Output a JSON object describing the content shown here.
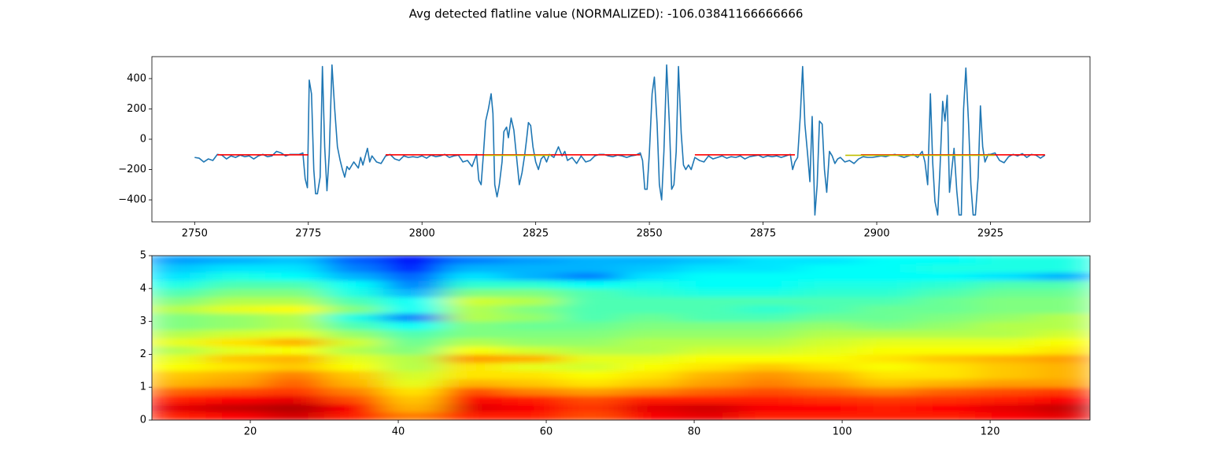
{
  "title": "Avg detected flatline value (NORMALIZED): -106.03841166666666",
  "chart_data": [
    {
      "type": "line",
      "xlim": [
        2740.6,
        2946.9
      ],
      "ylim": [
        -545,
        545
      ],
      "xticks": [
        2750,
        2775,
        2800,
        2825,
        2850,
        2875,
        2900,
        2925
      ],
      "yticks": [
        {
          "value": -400,
          "label": "−400"
        },
        {
          "value": -200,
          "label": "−200"
        },
        0,
        200,
        400
      ],
      "series": [
        {
          "color": "#1f77b4",
          "x": [
            2750,
            2751,
            2752,
            2753,
            2754,
            2755,
            2756,
            2757,
            2758,
            2759,
            2760,
            2761,
            2762,
            2763,
            2764,
            2765,
            2766,
            2767,
            2768,
            2769,
            2770,
            2771,
            2772,
            2773,
            2773.8,
            2774.3,
            2774.8,
            2775.2,
            2775.7,
            2776.2,
            2776.6,
            2777,
            2777.6,
            2778.1,
            2778.6,
            2779.1,
            2779.6,
            2780.2,
            2780.8,
            2781.4,
            2782,
            2782.5,
            2783,
            2783.5,
            2784,
            2785,
            2786,
            2786.5,
            2787,
            2788,
            2788.5,
            2789,
            2790,
            2791,
            2792,
            2793,
            2794,
            2795,
            2796,
            2797,
            2798,
            2799,
            2800,
            2801,
            2802,
            2803,
            2804,
            2805,
            2806,
            2807,
            2808,
            2809,
            2810,
            2811,
            2812,
            2812.5,
            2813,
            2813.5,
            2814,
            2814.6,
            2815.2,
            2815.6,
            2816,
            2816.5,
            2817,
            2817.6,
            2818,
            2818.6,
            2819,
            2819.6,
            2820.2,
            2820.8,
            2821.4,
            2822,
            2822.6,
            2823,
            2823.4,
            2823.9,
            2824.4,
            2825,
            2825.6,
            2826.2,
            2826.8,
            2827.4,
            2828,
            2829,
            2830,
            2830.8,
            2831.4,
            2832,
            2833,
            2834,
            2835,
            2836,
            2837,
            2838,
            2839,
            2840,
            2841,
            2842,
            2843,
            2844,
            2845,
            2846,
            2847,
            2848,
            2848.5,
            2849,
            2849.5,
            2850,
            2850.6,
            2851.1,
            2851.7,
            2852.2,
            2852.7,
            2853.2,
            2853.8,
            2854.4,
            2854.9,
            2855.4,
            2855.9,
            2856.4,
            2857,
            2857.5,
            2858,
            2858.6,
            2859.2,
            2860,
            2861,
            2862,
            2863,
            2864,
            2865,
            2866,
            2867,
            2868,
            2869,
            2870,
            2871,
            2872,
            2873,
            2874,
            2875,
            2876,
            2877,
            2878,
            2879,
            2880,
            2881,
            2881.5,
            2882,
            2882.6,
            2883.2,
            2883.7,
            2884.2,
            2884.8,
            2885.3,
            2885.8,
            2886.4,
            2886.9,
            2887.4,
            2888,
            2888.5,
            2889,
            2889.6,
            2890.2,
            2890.8,
            2891.4,
            2892,
            2893,
            2894,
            2895,
            2896,
            2897,
            2898,
            2899,
            2900,
            2901,
            2902,
            2903,
            2904,
            2905,
            2906,
            2907,
            2908,
            2909,
            2910,
            2910.6,
            2911.2,
            2911.8,
            2912.3,
            2912.8,
            2913.4,
            2913.9,
            2914.5,
            2915,
            2915.5,
            2916,
            2916.5,
            2917,
            2917.6,
            2918.1,
            2918.6,
            2919.1,
            2919.6,
            2920.2,
            2920.7,
            2921.2,
            2921.7,
            2922.3,
            2922.8,
            2923.3,
            2923.8,
            2924.5,
            2925,
            2926,
            2927,
            2928,
            2929,
            2930,
            2931,
            2932,
            2933,
            2934,
            2935,
            2936,
            2937
          ],
          "values": [
            -120,
            -125,
            -150,
            -130,
            -140,
            -100,
            -105,
            -130,
            -110,
            -120,
            -105,
            -115,
            -110,
            -130,
            -110,
            -100,
            -115,
            -110,
            -80,
            -90,
            -110,
            -100,
            -100,
            -100,
            -90,
            -260,
            -320,
            390,
            300,
            -200,
            -360,
            -360,
            -250,
            480,
            -50,
            -340,
            -100,
            490,
            200,
            -50,
            -140,
            -200,
            -250,
            -180,
            -200,
            -150,
            -190,
            -120,
            -170,
            -60,
            -150,
            -110,
            -150,
            -160,
            -110,
            -100,
            -130,
            -140,
            -110,
            -120,
            -115,
            -120,
            -110,
            -125,
            -105,
            -115,
            -110,
            -100,
            -120,
            -110,
            -105,
            -150,
            -140,
            -180,
            -100,
            -270,
            -300,
            -100,
            120,
            200,
            300,
            170,
            -300,
            -380,
            -300,
            -150,
            50,
            80,
            10,
            140,
            60,
            -120,
            -300,
            -220,
            -100,
            0,
            110,
            90,
            -50,
            -150,
            -200,
            -130,
            -110,
            -150,
            -100,
            -120,
            -50,
            -110,
            -80,
            -140,
            -120,
            -160,
            -110,
            -150,
            -140,
            -110,
            -100,
            -100,
            -110,
            -115,
            -105,
            -110,
            -120,
            -110,
            -105,
            -90,
            -140,
            -330,
            -330,
            -90,
            300,
            410,
            100,
            -300,
            -400,
            -80,
            490,
            100,
            -330,
            -300,
            -80,
            480,
            40,
            -170,
            -200,
            -170,
            -200,
            -120,
            -140,
            -150,
            -110,
            -130,
            -120,
            -110,
            -125,
            -115,
            -120,
            -110,
            -130,
            -115,
            -110,
            -105,
            -120,
            -110,
            -115,
            -110,
            -120,
            -110,
            -100,
            -200,
            -150,
            -120,
            160,
            480,
            100,
            -100,
            -280,
            150,
            -500,
            -300,
            120,
            100,
            -200,
            -350,
            -80,
            -110,
            -160,
            -130,
            -120,
            -150,
            -140,
            -160,
            -130,
            -115,
            -120,
            -120,
            -115,
            -110,
            -115,
            -105,
            -100,
            -110,
            -120,
            -110,
            -100,
            -120,
            -80,
            -150,
            -300,
            300,
            -150,
            -410,
            -500,
            -200,
            250,
            120,
            290,
            -350,
            -200,
            -60,
            -340,
            -500,
            -500,
            200,
            470,
            100,
            -300,
            -500,
            -500,
            -250,
            220,
            -50,
            -150,
            -100,
            -100,
            -90,
            -140,
            -155,
            -115,
            -100,
            -110,
            -95,
            -120,
            -100,
            -105,
            -125,
            -105
          ]
        },
        {
          "color": "#ff0000",
          "x": [
            2755,
            2775,
            null,
            2792,
            2848,
            null,
            2860,
            2882,
            null,
            2896.5,
            2937
          ],
          "values": [
            -103,
            -103,
            null,
            -103,
            -103,
            null,
            -103,
            -103,
            null,
            -103,
            -103
          ]
        },
        {
          "color": "#bfbf00",
          "x": [
            2813.7,
            2828.4,
            null,
            2893.1,
            2925.9
          ],
          "values": [
            -106,
            -106,
            null,
            -106,
            -106
          ]
        }
      ]
    },
    {
      "type": "heatmap",
      "colormap": "jet",
      "xlim": [
        6.7,
        133.5
      ],
      "ylim": [
        0,
        5
      ],
      "xticks": [
        20,
        40,
        60,
        80,
        100,
        120
      ],
      "yticks": [
        0,
        1,
        2,
        3,
        4,
        5
      ],
      "x": [
        10,
        18,
        26,
        34,
        42,
        50,
        58,
        66,
        74,
        82,
        90,
        98,
        106,
        114,
        122,
        130
      ],
      "y": [
        0.125,
        0.375,
        0.625,
        0.875,
        1.125,
        1.375,
        1.625,
        1.875,
        2.125,
        2.375,
        2.625,
        2.875,
        3.125,
        3.375,
        3.625,
        3.875,
        4.125,
        4.375,
        4.625,
        4.875
      ],
      "z": [
        [
          0.85,
          0.88,
          0.92,
          0.85,
          0.75,
          0.85,
          0.85,
          0.8,
          0.88,
          0.9,
          0.85,
          0.85,
          0.85,
          0.85,
          0.88,
          0.9
        ],
        [
          0.9,
          0.93,
          0.95,
          0.88,
          0.7,
          0.9,
          0.88,
          0.82,
          0.9,
          0.92,
          0.88,
          0.87,
          0.85,
          0.87,
          0.9,
          0.93
        ],
        [
          0.85,
          0.88,
          0.9,
          0.8,
          0.68,
          0.88,
          0.85,
          0.8,
          0.85,
          0.85,
          0.85,
          0.83,
          0.82,
          0.83,
          0.85,
          0.88
        ],
        [
          0.78,
          0.8,
          0.82,
          0.75,
          0.65,
          0.8,
          0.75,
          0.72,
          0.75,
          0.78,
          0.8,
          0.78,
          0.75,
          0.78,
          0.8,
          0.82
        ],
        [
          0.7,
          0.72,
          0.78,
          0.7,
          0.6,
          0.7,
          0.68,
          0.65,
          0.68,
          0.72,
          0.75,
          0.72,
          0.68,
          0.7,
          0.72,
          0.72
        ],
        [
          0.68,
          0.7,
          0.75,
          0.68,
          0.58,
          0.65,
          0.65,
          0.62,
          0.65,
          0.7,
          0.73,
          0.7,
          0.65,
          0.65,
          0.68,
          0.7
        ],
        [
          0.62,
          0.65,
          0.68,
          0.62,
          0.55,
          0.65,
          0.6,
          0.58,
          0.62,
          0.65,
          0.68,
          0.65,
          0.62,
          0.65,
          0.68,
          0.7
        ],
        [
          0.6,
          0.68,
          0.7,
          0.6,
          0.55,
          0.72,
          0.7,
          0.6,
          0.6,
          0.62,
          0.62,
          0.62,
          0.65,
          0.68,
          0.7,
          0.72
        ],
        [
          0.55,
          0.6,
          0.62,
          0.55,
          0.5,
          0.62,
          0.58,
          0.55,
          0.55,
          0.58,
          0.58,
          0.6,
          0.62,
          0.62,
          0.62,
          0.65
        ],
        [
          0.6,
          0.65,
          0.7,
          0.58,
          0.48,
          0.55,
          0.52,
          0.52,
          0.55,
          0.55,
          0.55,
          0.58,
          0.6,
          0.6,
          0.6,
          0.62
        ],
        [
          0.55,
          0.58,
          0.6,
          0.52,
          0.45,
          0.5,
          0.5,
          0.5,
          0.52,
          0.52,
          0.52,
          0.55,
          0.55,
          0.55,
          0.55,
          0.58
        ],
        [
          0.5,
          0.52,
          0.55,
          0.45,
          0.38,
          0.5,
          0.48,
          0.48,
          0.5,
          0.5,
          0.5,
          0.52,
          0.5,
          0.52,
          0.55,
          0.55
        ],
        [
          0.5,
          0.52,
          0.55,
          0.4,
          0.25,
          0.55,
          0.52,
          0.45,
          0.48,
          0.45,
          0.45,
          0.48,
          0.48,
          0.5,
          0.52,
          0.55
        ],
        [
          0.55,
          0.6,
          0.62,
          0.5,
          0.38,
          0.55,
          0.5,
          0.45,
          0.45,
          0.45,
          0.42,
          0.45,
          0.48,
          0.48,
          0.5,
          0.5
        ],
        [
          0.5,
          0.55,
          0.55,
          0.45,
          0.38,
          0.58,
          0.55,
          0.45,
          0.45,
          0.45,
          0.45,
          0.45,
          0.45,
          0.48,
          0.5,
          0.5
        ],
        [
          0.45,
          0.5,
          0.5,
          0.4,
          0.3,
          0.5,
          0.5,
          0.45,
          0.42,
          0.4,
          0.4,
          0.42,
          0.42,
          0.45,
          0.48,
          0.48
        ],
        [
          0.4,
          0.45,
          0.45,
          0.38,
          0.25,
          0.42,
          0.42,
          0.38,
          0.4,
          0.38,
          0.38,
          0.4,
          0.4,
          0.42,
          0.45,
          0.45
        ],
        [
          0.35,
          0.4,
          0.38,
          0.3,
          0.22,
          0.35,
          0.3,
          0.25,
          0.35,
          0.38,
          0.38,
          0.38,
          0.38,
          0.38,
          0.35,
          0.3
        ],
        [
          0.32,
          0.35,
          0.35,
          0.25,
          0.15,
          0.3,
          0.3,
          0.3,
          0.32,
          0.35,
          0.35,
          0.38,
          0.38,
          0.4,
          0.4,
          0.4
        ],
        [
          0.28,
          0.3,
          0.32,
          0.22,
          0.12,
          0.25,
          0.28,
          0.3,
          0.3,
          0.32,
          0.35,
          0.35,
          0.38,
          0.38,
          0.4,
          0.4
        ]
      ]
    }
  ]
}
